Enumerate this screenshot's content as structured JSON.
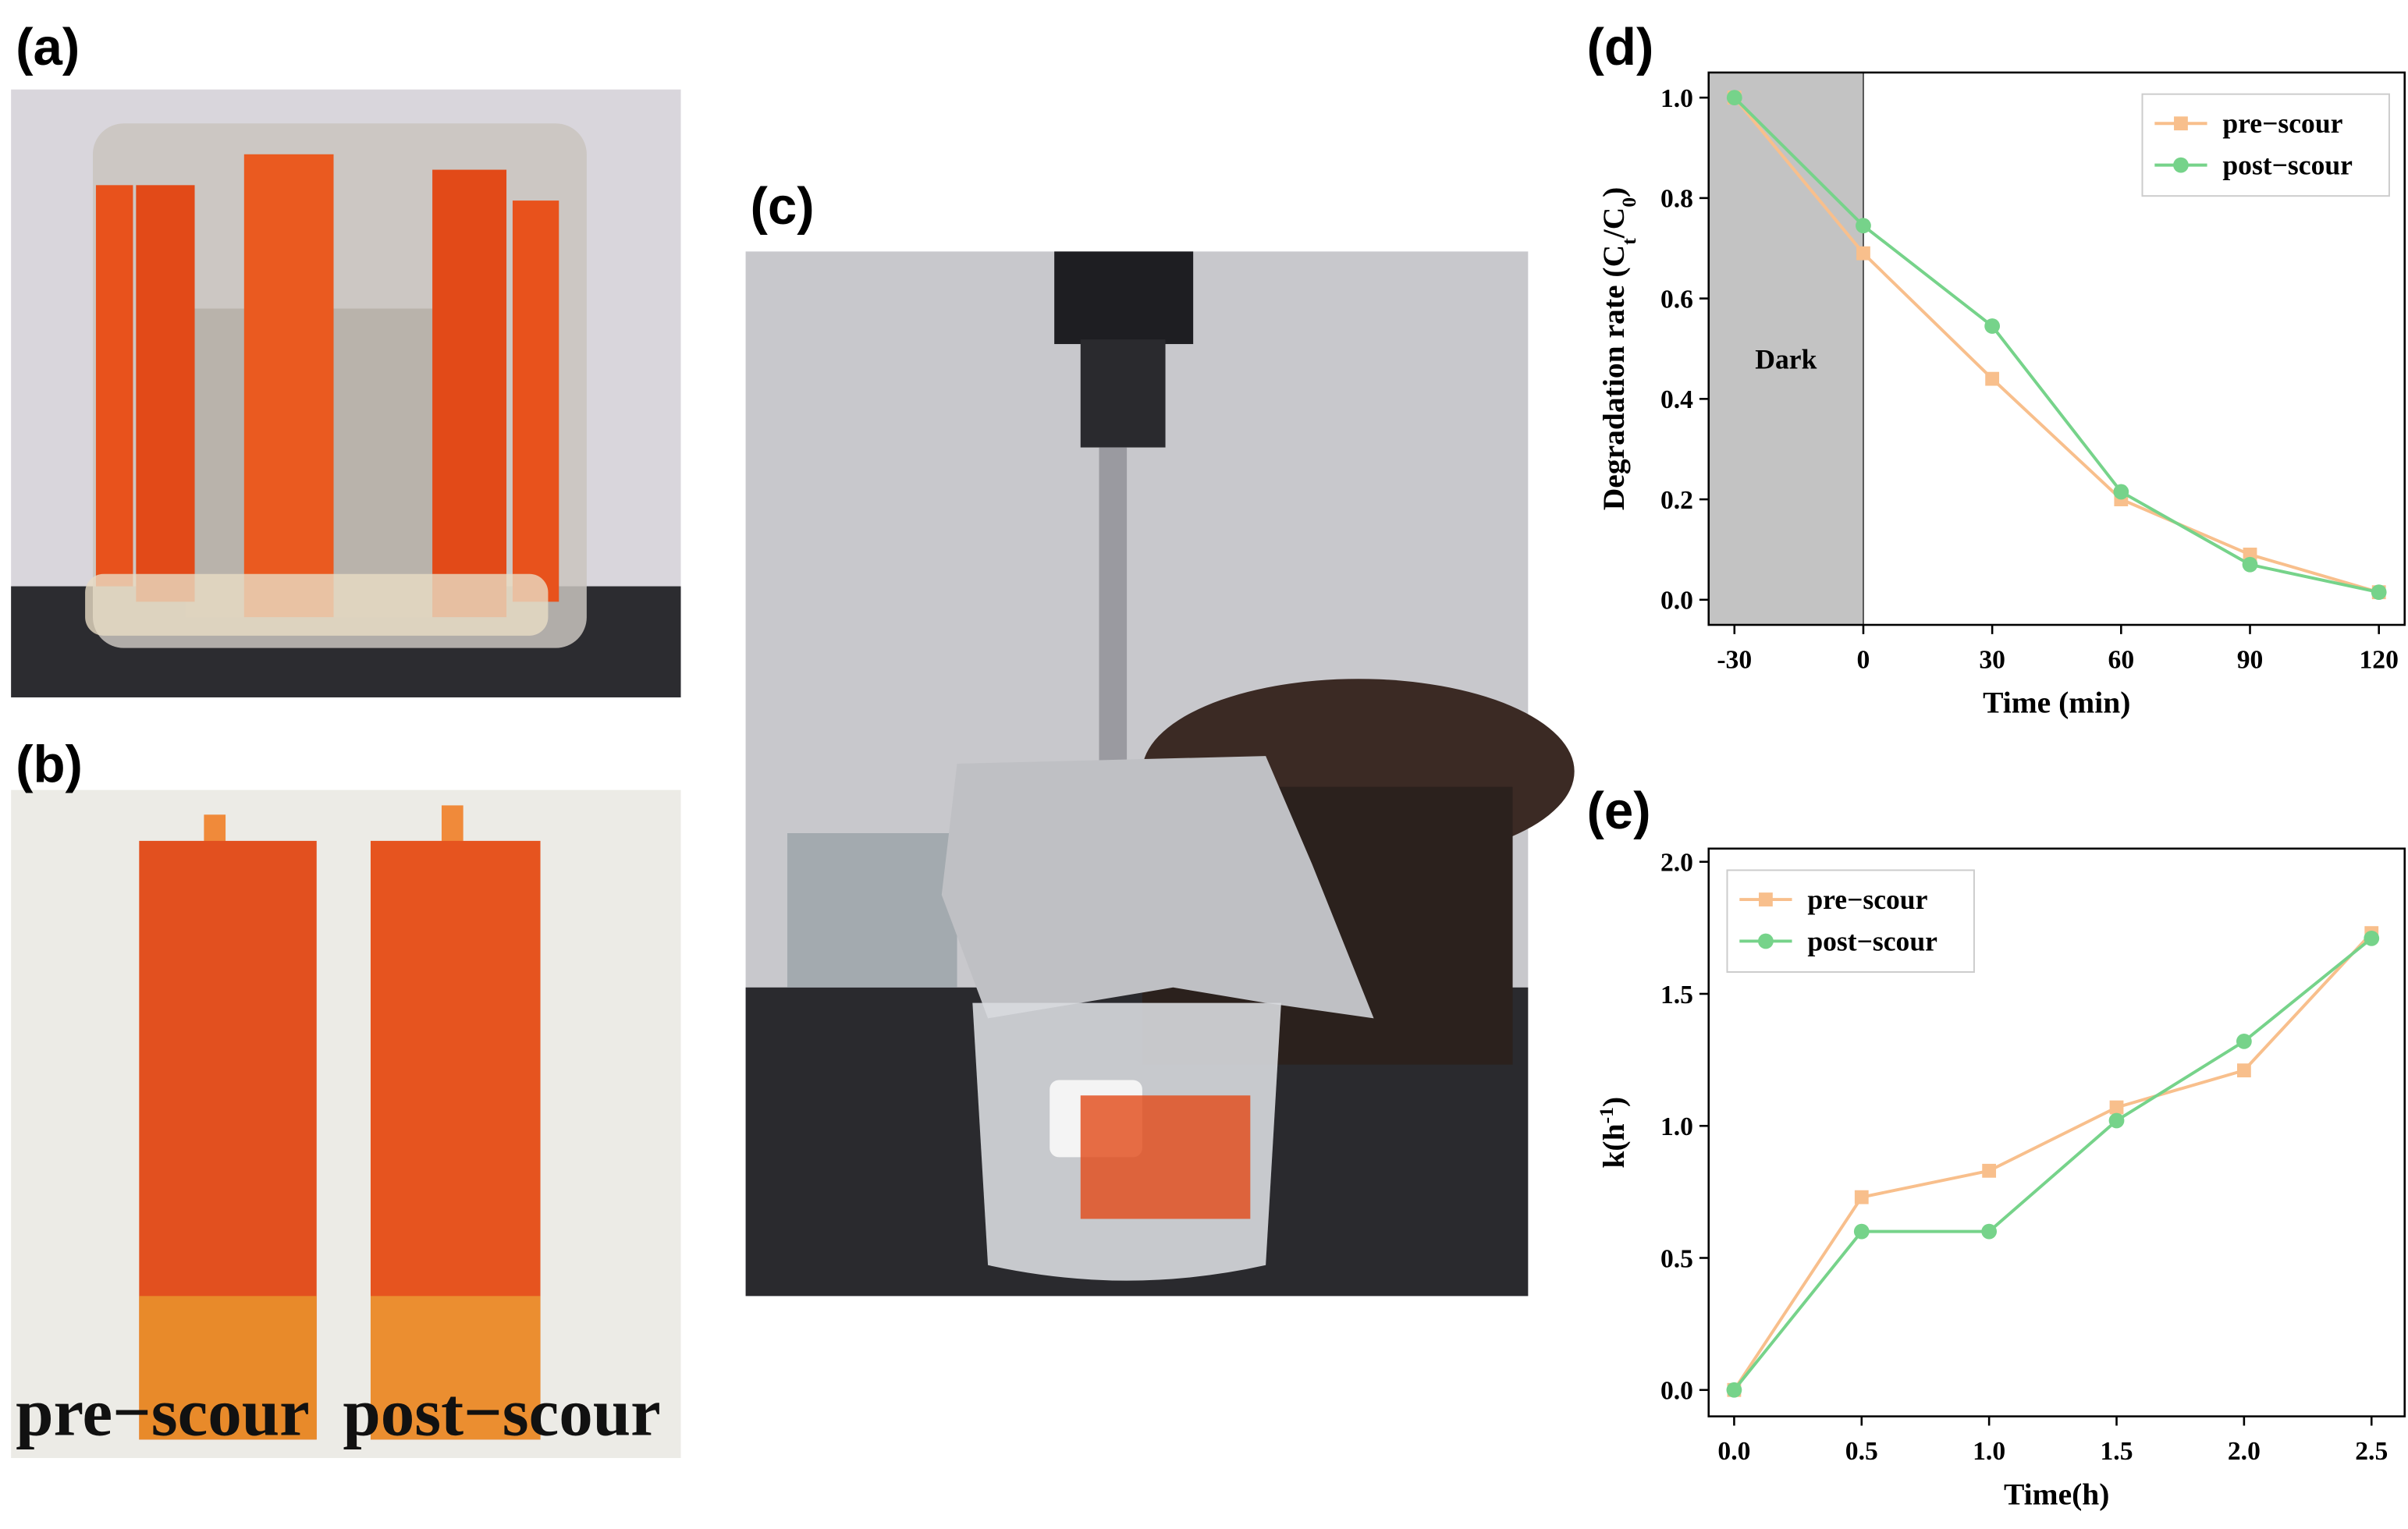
{
  "panel_labels": [
    "(a)",
    "(b)",
    "(c)",
    "(d)",
    "(e)"
  ],
  "photo_b_labels": [
    "pre−scour",
    "post−scour"
  ],
  "chart_data": [
    {
      "type": "line",
      "xlabel": "Time (min)",
      "ylabel_parts": [
        "Degradation rate (C",
        "t",
        "/C",
        "0",
        ")"
      ],
      "annotation": "Dark",
      "shaded_xrange": [
        -36,
        0
      ],
      "x": [
        -30,
        0,
        30,
        60,
        90,
        120
      ],
      "series": [
        {
          "name": "pre−scour",
          "color": "#f8bf8c",
          "marker": "square",
          "values": [
            1.0,
            0.69,
            0.44,
            0.2,
            0.09,
            0.015
          ]
        },
        {
          "name": "post−scour",
          "color": "#76d38a",
          "marker": "circle",
          "values": [
            1.0,
            0.745,
            0.545,
            0.215,
            0.07,
            0.015
          ]
        }
      ],
      "xlim": [
        -36,
        126
      ],
      "ylim": [
        -0.05,
        1.05
      ],
      "xticks": [
        -30,
        0,
        30,
        60,
        90,
        120
      ],
      "yticks": [
        {
          "value": 0,
          "label": "0.0"
        },
        0.2,
        0.4,
        0.6,
        0.8,
        {
          "value": 1,
          "label": "1.0"
        }
      ],
      "legend": "upper right"
    },
    {
      "type": "line",
      "xlabel": "Time(h)",
      "ylabel_parts": [
        "k(h",
        "-1",
        ")"
      ],
      "x": [
        0,
        0.5,
        1,
        1.5,
        2,
        2.5
      ],
      "series": [
        {
          "name": "pre−scour",
          "color": "#f8bf8c",
          "marker": "square",
          "values": [
            0,
            0.73,
            0.83,
            1.07,
            1.21,
            1.73
          ]
        },
        {
          "name": "post−scour",
          "color": "#76d38a",
          "marker": "circle",
          "values": [
            0,
            0.6,
            0.6,
            1.02,
            1.32,
            1.71
          ]
        }
      ],
      "xlim": [
        -0.1,
        2.63
      ],
      "ylim": [
        -0.1,
        2.05
      ],
      "xticks": [
        {
          "value": 0,
          "label": "0.0"
        },
        0.5,
        {
          "value": 1,
          "label": "1.0"
        },
        1.5,
        {
          "value": 2,
          "label": "2.0"
        },
        2.5
      ],
      "yticks": [
        {
          "value": 0,
          "label": "0.0"
        },
        0.5,
        {
          "value": 1,
          "label": "1.0"
        },
        1.5,
        {
          "value": 2,
          "label": "2.0"
        }
      ],
      "legend": "upper left"
    }
  ]
}
